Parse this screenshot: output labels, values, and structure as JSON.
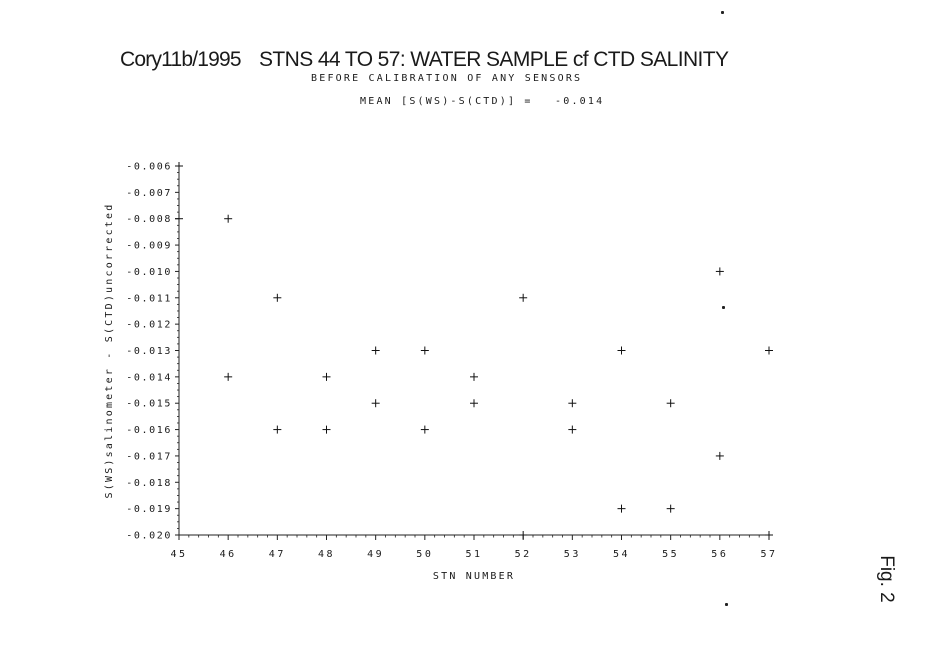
{
  "page": {
    "title_left": "Cory11b/1995",
    "title_main": "STNS 44 TO 57: WATER SAMPLE cf CTD SALINITY",
    "subtitle": "BEFORE CALIBRATION OF ANY SENSORS",
    "mean_label": "MEAN [S(WS)-S(CTD)] =",
    "mean_value": "-0.014",
    "fig_label": "Fig. 2"
  },
  "chart_data": {
    "type": "scatter",
    "title": "STNS 44 TO 57: WATER SAMPLE cf CTD SALINITY",
    "subtitle": "BEFORE CALIBRATION OF ANY SENSORS",
    "xlabel": "STN NUMBER",
    "ylabel": "S(WS)salinometer - S(CTD)uncorrected",
    "xlim": [
      45,
      57
    ],
    "ylim": [
      -0.02,
      -0.006
    ],
    "grid": false,
    "x_ticks": [
      45,
      46,
      47,
      48,
      49,
      50,
      51,
      52,
      53,
      54,
      55,
      56,
      57
    ],
    "x_tick_labels": [
      "45",
      "46",
      "47",
      "48",
      "49",
      "50",
      "51",
      "52",
      "53",
      "54",
      "55",
      "56",
      "57"
    ],
    "y_ticks": [
      -0.006,
      -0.007,
      -0.008,
      -0.009,
      -0.01,
      -0.011,
      -0.012,
      -0.013,
      -0.014,
      -0.015,
      -0.016,
      -0.017,
      -0.018,
      -0.019,
      -0.02
    ],
    "y_tick_labels": [
      "-0.006",
      "-0.007",
      "-0.008",
      "-0.009",
      "-0.010",
      "-0.011",
      "-0.012",
      "-0.013",
      "-0.014",
      "-0.015",
      "-0.016",
      "-0.017",
      "-0.018",
      "-0.019",
      "-0.020"
    ],
    "marker": "+",
    "points": [
      {
        "x": 45,
        "y": -0.006
      },
      {
        "x": 45,
        "y": -0.008
      },
      {
        "x": 46,
        "y": -0.008
      },
      {
        "x": 46,
        "y": -0.014
      },
      {
        "x": 47,
        "y": -0.011
      },
      {
        "x": 47,
        "y": -0.016
      },
      {
        "x": 48,
        "y": -0.014
      },
      {
        "x": 48,
        "y": -0.016
      },
      {
        "x": 49,
        "y": -0.013
      },
      {
        "x": 49,
        "y": -0.015
      },
      {
        "x": 50,
        "y": -0.013
      },
      {
        "x": 50,
        "y": -0.016
      },
      {
        "x": 51,
        "y": -0.014
      },
      {
        "x": 51,
        "y": -0.015
      },
      {
        "x": 52,
        "y": -0.011
      },
      {
        "x": 52,
        "y": -0.02
      },
      {
        "x": 53,
        "y": -0.015
      },
      {
        "x": 53,
        "y": -0.016
      },
      {
        "x": 54,
        "y": -0.013
      },
      {
        "x": 54,
        "y": -0.019
      },
      {
        "x": 55,
        "y": -0.015
      },
      {
        "x": 55,
        "y": -0.019
      },
      {
        "x": 56,
        "y": -0.01
      },
      {
        "x": 56,
        "y": -0.017
      },
      {
        "x": 57,
        "y": -0.013
      },
      {
        "x": 57,
        "y": -0.02
      }
    ]
  }
}
